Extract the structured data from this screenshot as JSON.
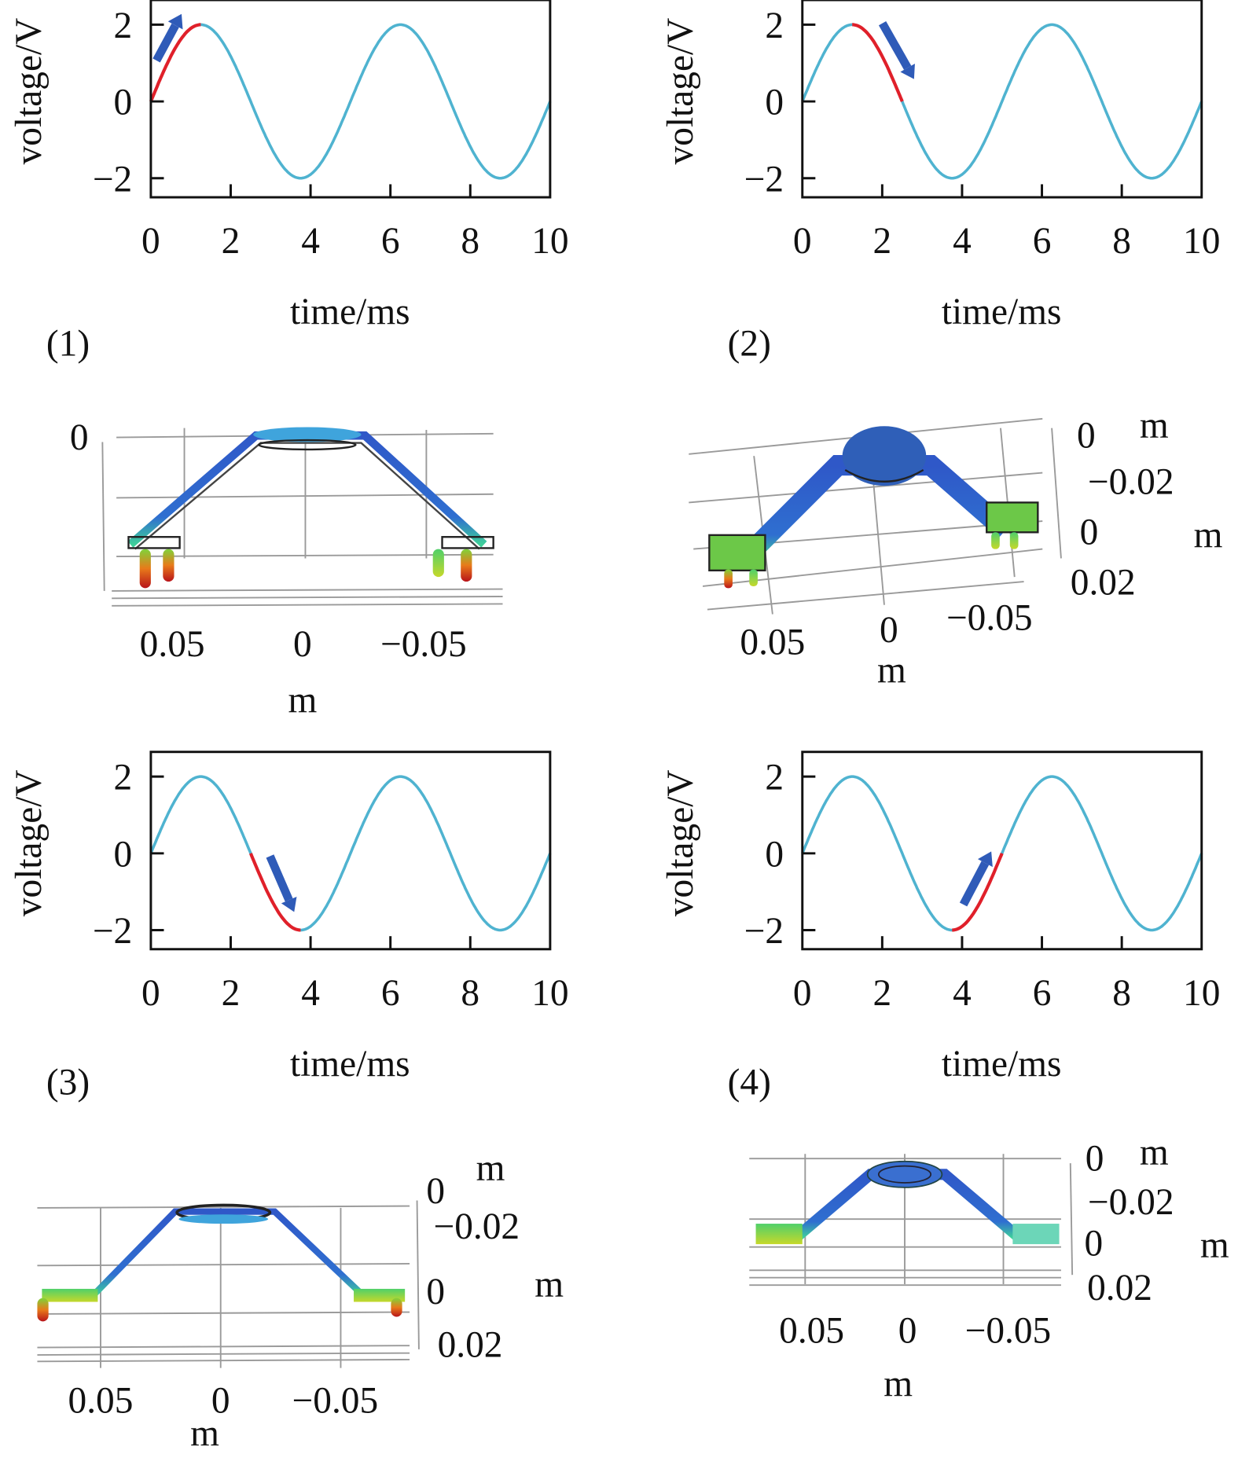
{
  "colors": {
    "curve": "#4fb3d0",
    "highlight": "#e0202a",
    "arrow": "#2f5bb8",
    "axis": "#111111"
  },
  "chart_data": [
    {
      "type": "line",
      "panel": "(1)",
      "xlabel": "time/ms",
      "ylabel": "voltage/V",
      "xlim": [
        0,
        10
      ],
      "ylim": [
        -2.5,
        2.5
      ],
      "xticks": [
        "0",
        "2",
        "4",
        "6",
        "8",
        "10"
      ],
      "yticks": [
        "2",
        "0",
        "−2"
      ],
      "ytick_values": [
        2,
        0,
        -2
      ],
      "series": [
        {
          "name": "voltage",
          "function": "2*sin(2*pi*t/5)",
          "amplitude": 2,
          "period_ms": 5
        }
      ],
      "highlight_range": [
        0,
        1.25
      ],
      "arrow_direction": "up"
    },
    {
      "type": "line",
      "panel": "(2)",
      "xlabel": "time/ms",
      "ylabel": "voltage/V",
      "xlim": [
        0,
        10
      ],
      "ylim": [
        -2.5,
        2.5
      ],
      "xticks": [
        "0",
        "2",
        "4",
        "6",
        "8",
        "10"
      ],
      "yticks": [
        "2",
        "0",
        "−2"
      ],
      "ytick_values": [
        2,
        0,
        -2
      ],
      "series": [
        {
          "name": "voltage",
          "function": "2*sin(2*pi*t/5)",
          "amplitude": 2,
          "period_ms": 5
        }
      ],
      "highlight_range": [
        1.25,
        2.5
      ],
      "arrow_direction": "down"
    },
    {
      "type": "line",
      "panel": "(3)",
      "xlabel": "time/ms",
      "ylabel": "voltage/V",
      "xlim": [
        0,
        10
      ],
      "ylim": [
        -2.5,
        2.5
      ],
      "xticks": [
        "0",
        "2",
        "4",
        "6",
        "8",
        "10"
      ],
      "yticks": [
        "2",
        "0",
        "−2"
      ],
      "ytick_values": [
        2,
        0,
        -2
      ],
      "series": [
        {
          "name": "voltage",
          "function": "2*sin(2*pi*t/5)",
          "amplitude": 2,
          "period_ms": 5
        }
      ],
      "highlight_range": [
        2.5,
        3.75
      ],
      "arrow_direction": "down"
    },
    {
      "type": "line",
      "panel": "(4)",
      "xlabel": "time/ms",
      "ylabel": "voltage/V",
      "xlim": [
        0,
        10
      ],
      "ylim": [
        -2.5,
        2.5
      ],
      "xticks": [
        "0",
        "2",
        "4",
        "6",
        "8",
        "10"
      ],
      "yticks": [
        "2",
        "0",
        "−2"
      ],
      "ytick_values": [
        2,
        0,
        -2
      ],
      "series": [
        {
          "name": "voltage",
          "function": "2*sin(2*pi*t/5)",
          "amplitude": 2,
          "period_ms": 5
        }
      ],
      "highlight_range": [
        3.75,
        5
      ],
      "arrow_direction": "up"
    }
  ],
  "renders": [
    {
      "labels": [
        "0",
        "0.05",
        "0",
        "−0.05",
        "m"
      ]
    },
    {
      "labels": [
        "0",
        "m",
        "−0.02",
        "0",
        "m",
        "0.02",
        "0.05",
        "0",
        "−0.05",
        "m"
      ]
    },
    {
      "labels": [
        "m",
        "0",
        "−0.02",
        "0",
        "m",
        "0.02",
        "0.05",
        "0",
        "−0.05",
        "m"
      ]
    },
    {
      "labels": [
        "0",
        "m",
        "−0.02",
        "0",
        "m",
        "0.02",
        "0.05",
        "0",
        "−0.05",
        "m"
      ]
    }
  ]
}
